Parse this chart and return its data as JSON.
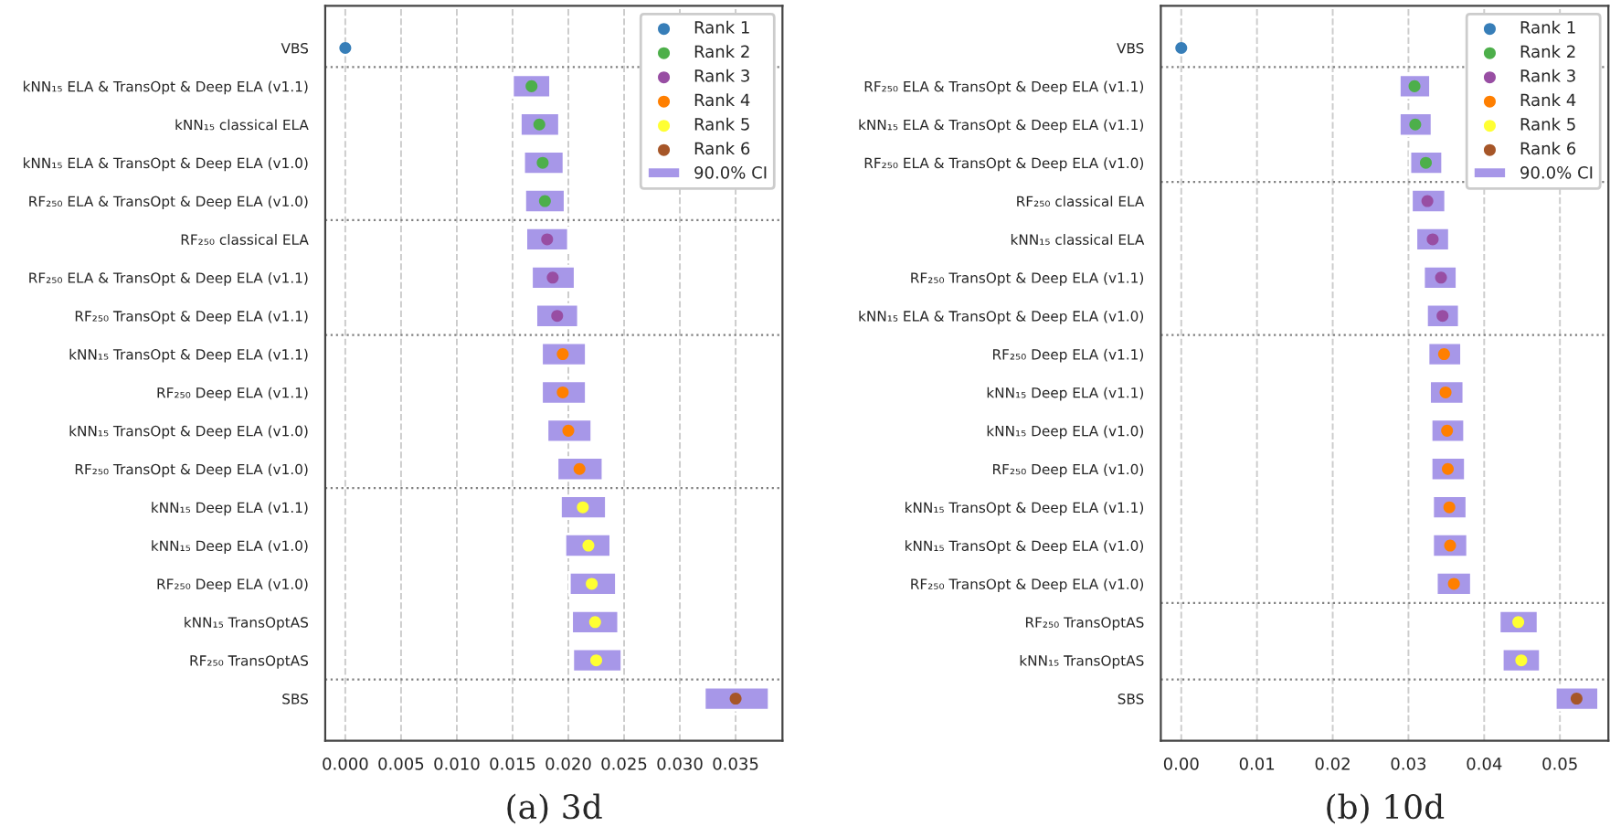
{
  "chart_data": [
    {
      "type": "scatter",
      "orientation": "horizontal",
      "xlabel": "(a) 3d",
      "categories": [
        "VBS",
        "kNN₁₅ ELA & TransOpt & Deep ELA (v1.1)",
        "kNN₁₅ classical ELA",
        "kNN₁₅ ELA & TransOpt & Deep ELA (v1.0)",
        "RF₂₅₀ ELA & TransOpt & Deep ELA (v1.0)",
        "RF₂₅₀ classical ELA",
        "RF₂₅₀ ELA & TransOpt & Deep ELA (v1.1)",
        "RF₂₅₀ TransOpt & Deep ELA (v1.1)",
        "kNN₁₅ TransOpt & Deep ELA (v1.1)",
        "RF₂₅₀ Deep ELA (v1.1)",
        "kNN₁₅ TransOpt & Deep ELA (v1.0)",
        "RF₂₅₀ TransOpt & Deep ELA (v1.0)",
        "kNN₁₅ Deep ELA (v1.1)",
        "kNN₁₅ Deep ELA (v1.0)",
        "RF₂₅₀ Deep ELA (v1.0)",
        "kNN₁₅ TransOptAS",
        "RF₂₅₀ TransOptAS",
        "SBS"
      ],
      "series": [
        {
          "name": "Rank 1",
          "color": "#377eb8",
          "values": [
            0.0,
            null,
            null,
            null,
            null,
            null,
            null,
            null,
            null,
            null,
            null,
            null,
            null,
            null,
            null,
            null,
            null,
            null
          ]
        },
        {
          "name": "Rank 2",
          "color": "#4daf4a",
          "values": [
            null,
            0.0167,
            0.0174,
            0.0177,
            0.0179,
            null,
            null,
            null,
            null,
            null,
            null,
            null,
            null,
            null,
            null,
            null,
            null,
            null
          ]
        },
        {
          "name": "Rank 3",
          "color": "#984ea3",
          "values": [
            null,
            null,
            null,
            null,
            null,
            0.0181,
            0.0186,
            0.019,
            null,
            null,
            null,
            null,
            null,
            null,
            null,
            null,
            null,
            null
          ]
        },
        {
          "name": "Rank 4",
          "color": "#ff7f00",
          "values": [
            null,
            null,
            null,
            null,
            null,
            null,
            null,
            null,
            0.0195,
            0.0195,
            0.02,
            0.021,
            null,
            null,
            null,
            null,
            null,
            null
          ]
        },
        {
          "name": "Rank 5",
          "color": "#ffff33",
          "values": [
            null,
            null,
            null,
            null,
            null,
            null,
            null,
            null,
            null,
            null,
            null,
            null,
            0.0213,
            0.0218,
            0.0221,
            0.0224,
            0.0225,
            null
          ]
        },
        {
          "name": "Rank 6",
          "color": "#a65628",
          "values": [
            null,
            null,
            null,
            null,
            null,
            null,
            null,
            null,
            null,
            null,
            null,
            null,
            null,
            null,
            null,
            null,
            null,
            0.035
          ]
        },
        {
          "name": "90.0% CI",
          "type": "bar",
          "color": "#a797e8",
          "base": [
            null,
            0.015,
            0.0157,
            0.016,
            0.0161,
            0.0162,
            0.0167,
            0.0171,
            0.0176,
            0.0176,
            0.0181,
            0.019,
            0.0193,
            0.0197,
            0.0201,
            0.0203,
            0.0204,
            0.0322
          ],
          "values": [
            null,
            0.0034,
            0.0035,
            0.0036,
            0.0036,
            0.0038,
            0.0039,
            0.0038,
            0.004,
            0.004,
            0.004,
            0.0041,
            0.0041,
            0.0041,
            0.0042,
            0.0042,
            0.0044,
            0.0058
          ]
        }
      ],
      "xlim": [
        -0.0018,
        0.0392
      ],
      "xticks": [
        {
          "value": 0,
          "label": "0.000"
        },
        {
          "value": 0.005,
          "label": "0.005"
        },
        {
          "value": 0.01,
          "label": "0.010"
        },
        {
          "value": 0.015,
          "label": "0.015"
        },
        {
          "value": 0.02,
          "label": "0.020"
        },
        {
          "value": 0.025,
          "label": "0.025"
        },
        {
          "value": 0.03,
          "label": "0.030"
        },
        {
          "value": 0.035,
          "label": "0.035"
        }
      ],
      "grid": "x",
      "legend": "top right",
      "marker": "circle"
    },
    {
      "type": "scatter",
      "orientation": "horizontal",
      "xlabel": "(b) 10d",
      "categories": [
        "VBS",
        "RF₂₅₀ ELA & TransOpt & Deep ELA (v1.1)",
        "kNN₁₅ ELA & TransOpt & Deep ELA (v1.1)",
        "RF₂₅₀ ELA & TransOpt & Deep ELA (v1.0)",
        "RF₂₅₀ classical ELA",
        "kNN₁₅ classical ELA",
        "RF₂₅₀ TransOpt & Deep ELA (v1.1)",
        "kNN₁₅ ELA & TransOpt & Deep ELA (v1.0)",
        "RF₂₅₀ Deep ELA (v1.1)",
        "kNN₁₅ Deep ELA (v1.1)",
        "kNN₁₅ Deep ELA (v1.0)",
        "RF₂₅₀ Deep ELA (v1.0)",
        "kNN₁₅ TransOpt & Deep ELA (v1.1)",
        "kNN₁₅ TransOpt & Deep ELA (v1.0)",
        "RF₂₅₀ TransOpt & Deep ELA (v1.0)",
        "RF₂₅₀ TransOptAS",
        "kNN₁₅ TransOptAS",
        "SBS"
      ],
      "series": [
        {
          "name": "Rank 1",
          "color": "#377eb8",
          "values": [
            0.0,
            null,
            null,
            null,
            null,
            null,
            null,
            null,
            null,
            null,
            null,
            null,
            null,
            null,
            null,
            null,
            null,
            null
          ]
        },
        {
          "name": "Rank 2",
          "color": "#4daf4a",
          "values": [
            null,
            0.0308,
            0.0309,
            0.0323,
            null,
            null,
            null,
            null,
            null,
            null,
            null,
            null,
            null,
            null,
            null,
            null,
            null,
            null
          ]
        },
        {
          "name": "Rank 3",
          "color": "#984ea3",
          "values": [
            null,
            null,
            null,
            null,
            0.0325,
            0.0332,
            0.0343,
            0.0345,
            null,
            null,
            null,
            null,
            null,
            null,
            null,
            null,
            null,
            null
          ]
        },
        {
          "name": "Rank 4",
          "color": "#ff7f00",
          "values": [
            null,
            null,
            null,
            null,
            null,
            null,
            null,
            null,
            0.0347,
            0.0349,
            0.0351,
            0.0352,
            0.0354,
            0.0355,
            0.036,
            null,
            null,
            null
          ]
        },
        {
          "name": "Rank 5",
          "color": "#ffff33",
          "values": [
            null,
            null,
            null,
            null,
            null,
            null,
            null,
            null,
            null,
            null,
            null,
            null,
            null,
            null,
            null,
            0.0445,
            0.0449,
            null
          ]
        },
        {
          "name": "Rank 6",
          "color": "#a65628",
          "values": [
            null,
            null,
            null,
            null,
            null,
            null,
            null,
            null,
            null,
            null,
            null,
            null,
            null,
            null,
            null,
            null,
            null,
            0.0522
          ]
        },
        {
          "name": "90.0% CI",
          "type": "bar",
          "color": "#a797e8",
          "base": [
            null,
            0.0288,
            0.0288,
            0.0302,
            0.0304,
            0.031,
            0.032,
            0.0324,
            0.0326,
            0.0328,
            0.033,
            0.033,
            0.0332,
            0.0332,
            0.0337,
            0.042,
            0.0424,
            0.0494
          ],
          "values": [
            null,
            0.0041,
            0.0043,
            0.0043,
            0.0045,
            0.0044,
            0.0044,
            0.0043,
            0.0044,
            0.0045,
            0.0044,
            0.0045,
            0.0045,
            0.0046,
            0.0046,
            0.0051,
            0.005,
            0.0057
          ]
        }
      ],
      "xlim": [
        -0.0027,
        0.0564
      ],
      "xticks": [
        {
          "value": 0,
          "label": "0.00"
        },
        {
          "value": 0.01,
          "label": "0.01"
        },
        {
          "value": 0.02,
          "label": "0.02"
        },
        {
          "value": 0.03,
          "label": "0.03"
        },
        {
          "value": 0.04,
          "label": "0.04"
        },
        {
          "value": 0.05,
          "label": "0.05"
        }
      ],
      "grid": "x",
      "legend": "top right",
      "marker": "circle"
    }
  ]
}
